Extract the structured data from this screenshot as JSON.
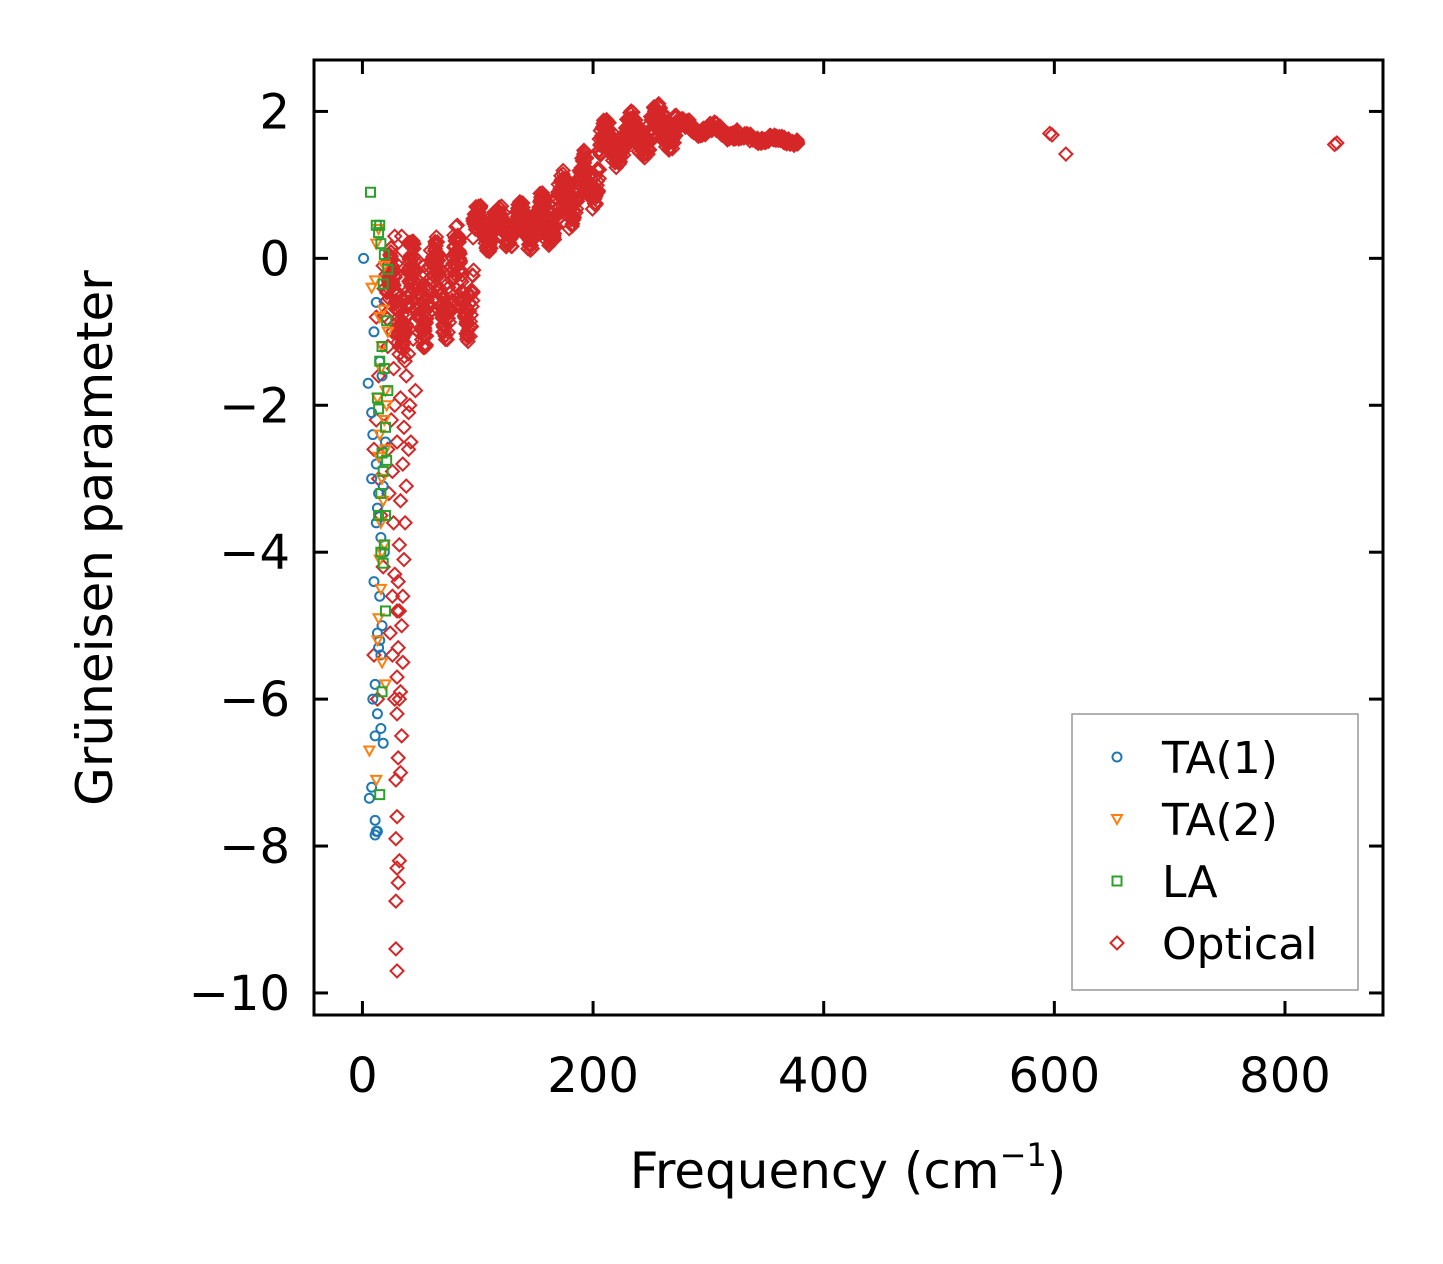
{
  "chart_data": {
    "type": "scatter",
    "title": "",
    "xlabel": "Frequency (cm",
    "xlabel_sup": "−1",
    "xlabel_suffix": ")",
    "ylabel": "Grüneisen parameter",
    "xlim": [
      -42,
      885
    ],
    "ylim": [
      -10.3,
      2.7
    ],
    "xticks": [
      0,
      200,
      400,
      600,
      800
    ],
    "xtick_labels": [
      "0",
      "200",
      "400",
      "600",
      "800"
    ],
    "yticks": [
      2,
      0,
      -2,
      -4,
      -6,
      -8,
      -10
    ],
    "ytick_labels": [
      "2",
      "0",
      "−2",
      "−4",
      "−6",
      "−8",
      "−10"
    ],
    "legend_position": "lower-right",
    "series": [
      {
        "name": "TA(1)",
        "marker": "circle",
        "color": "#1f77b4",
        "points": [
          [
            5,
            -1.7
          ],
          [
            8,
            -2.1
          ],
          [
            9,
            -2.4
          ],
          [
            10,
            -1.0
          ],
          [
            12,
            -2.8
          ],
          [
            13,
            -3.4
          ],
          [
            8,
            -3.0
          ],
          [
            14,
            -3.2
          ],
          [
            12,
            -3.6
          ],
          [
            10,
            -4.4
          ],
          [
            15,
            -4.6
          ],
          [
            13,
            -5.1
          ],
          [
            15,
            -5.2
          ],
          [
            17,
            -5.0
          ],
          [
            14,
            -5.3
          ],
          [
            11,
            -5.8
          ],
          [
            9,
            -6.0
          ],
          [
            13,
            -6.2
          ],
          [
            16,
            -6.4
          ],
          [
            11,
            -6.5
          ],
          [
            18,
            -6.6
          ],
          [
            8,
            -7.2
          ],
          [
            6,
            -7.35
          ],
          [
            11,
            -7.65
          ],
          [
            12,
            -7.8
          ],
          [
            11,
            -7.85
          ],
          [
            13,
            -7.8
          ],
          [
            15,
            -1.4
          ],
          [
            17,
            -1.6
          ],
          [
            18,
            -3.1
          ],
          [
            16,
            -3.8
          ],
          [
            12,
            -0.6
          ],
          [
            1,
            0.0
          ],
          [
            20,
            -2.5
          ],
          [
            19,
            -4.0
          ],
          [
            16,
            -5.4
          ]
        ]
      },
      {
        "name": "TA(2)",
        "marker": "triangle-down",
        "color": "#ff7f0e",
        "points": [
          [
            8,
            -0.4
          ],
          [
            11,
            -0.3
          ],
          [
            12,
            0.2
          ],
          [
            14,
            0.4
          ],
          [
            15,
            -0.8
          ],
          [
            18,
            -0.7
          ],
          [
            17,
            -1.2
          ],
          [
            16,
            -1.5
          ],
          [
            20,
            -1.8
          ],
          [
            13,
            -1.9
          ],
          [
            19,
            -2.2
          ],
          [
            15,
            -2.4
          ],
          [
            20,
            -2.6
          ],
          [
            17,
            -3.0
          ],
          [
            18,
            -3.3
          ],
          [
            16,
            -3.6
          ],
          [
            19,
            -3.9
          ],
          [
            15,
            -4.1
          ],
          [
            17,
            -4.0
          ],
          [
            14,
            -4.9
          ],
          [
            13,
            -5.2
          ],
          [
            17,
            -5.5
          ],
          [
            6,
            -6.7
          ],
          [
            12,
            -7.1
          ],
          [
            21,
            -2.0
          ],
          [
            19,
            -0.1
          ],
          [
            22,
            -1.0
          ],
          [
            14,
            -2.7
          ],
          [
            16,
            -4.5
          ],
          [
            20,
            -5.8
          ]
        ]
      },
      {
        "name": "LA",
        "marker": "square",
        "color": "#2ca02c",
        "points": [
          [
            7,
            0.9
          ],
          [
            12,
            0.45
          ],
          [
            15,
            0.45
          ],
          [
            14,
            0.35
          ],
          [
            16,
            0.2
          ],
          [
            19,
            0.05
          ],
          [
            22,
            -0.15
          ],
          [
            18,
            -0.35
          ],
          [
            21,
            -0.85
          ],
          [
            17,
            -1.2
          ],
          [
            15,
            -1.4
          ],
          [
            19,
            -1.5
          ],
          [
            22,
            -1.8
          ],
          [
            14,
            -2.05
          ],
          [
            20,
            -2.3
          ],
          [
            17,
            -2.65
          ],
          [
            21,
            -2.75
          ],
          [
            16,
            -3.2
          ],
          [
            20,
            -3.5
          ],
          [
            14,
            -3.5
          ],
          [
            19,
            -3.9
          ],
          [
            18,
            -4.15
          ],
          [
            16,
            -4.0
          ],
          [
            20,
            -4.8
          ],
          [
            17,
            -5.9
          ],
          [
            15,
            -7.3
          ],
          [
            13,
            -1.9
          ],
          [
            18,
            -2.9
          ]
        ]
      },
      {
        "name": "Optical",
        "marker": "diamond",
        "color": "#d62728",
        "curves": [
          {
            "x0": 20,
            "x1": 96,
            "y0": -0.6,
            "y1": -0.3,
            "amp": 0.55,
            "freq": 4,
            "n": 380,
            "spread": 0.28
          },
          {
            "x0": 96,
            "x1": 150,
            "y0": 0.4,
            "y1": 0.45,
            "amp": 0.22,
            "freq": 3,
            "n": 240,
            "spread": 0.13
          },
          {
            "x0": 150,
            "x1": 205,
            "y0": 0.4,
            "y1": 1.2,
            "amp": 0.3,
            "freq": 3,
            "n": 260,
            "spread": 0.18
          },
          {
            "x0": 205,
            "x1": 272,
            "y0": 1.5,
            "y1": 1.85,
            "amp": 0.2,
            "freq": 3,
            "n": 280,
            "spread": 0.17
          },
          {
            "x0": 272,
            "x1": 325,
            "y0": 1.8,
            "y1": 1.7,
            "amp": 0.06,
            "freq": 2,
            "n": 140,
            "spread": 0.06
          },
          {
            "x0": 325,
            "x1": 378,
            "y0": 1.65,
            "y1": 1.6,
            "amp": 0.03,
            "freq": 2,
            "n": 90,
            "spread": 0.04
          }
        ],
        "points": [
          [
            30,
            -0.2
          ],
          [
            35,
            0.1
          ],
          [
            28,
            0.3
          ],
          [
            34,
            0.3
          ],
          [
            30,
            -0.7
          ],
          [
            36,
            -1.0
          ],
          [
            32,
            -1.2
          ],
          [
            38,
            -1.6
          ],
          [
            33,
            -1.9
          ],
          [
            40,
            -2.1
          ],
          [
            36,
            -2.3
          ],
          [
            40,
            -2.6
          ],
          [
            35,
            -2.8
          ],
          [
            38,
            -3.1
          ],
          [
            33,
            -3.3
          ],
          [
            37,
            -3.6
          ],
          [
            32,
            -3.9
          ],
          [
            36,
            -4.1
          ],
          [
            31,
            -4.4
          ],
          [
            35,
            -4.6
          ],
          [
            30,
            -4.8
          ],
          [
            34,
            -5.0
          ],
          [
            31,
            -5.3
          ],
          [
            35,
            -5.5
          ],
          [
            30,
            -5.7
          ],
          [
            33,
            -5.9
          ],
          [
            30,
            -6.2
          ],
          [
            34,
            -6.5
          ],
          [
            31,
            -6.8
          ],
          [
            29,
            -7.1
          ],
          [
            33,
            -7.0
          ],
          [
            30,
            -7.6
          ],
          [
            29,
            -7.9
          ],
          [
            32,
            -8.2
          ],
          [
            30,
            -8.3
          ],
          [
            31,
            -8.5
          ],
          [
            29,
            -8.75
          ],
          [
            29,
            -9.4
          ],
          [
            30,
            -9.7
          ],
          [
            26,
            -1.0
          ],
          [
            27,
            -1.5
          ],
          [
            25,
            -2.2
          ],
          [
            26,
            -2.9
          ],
          [
            27,
            -3.6
          ],
          [
            28,
            -4.3
          ],
          [
            25,
            -0.3
          ],
          [
            42,
            -0.5
          ],
          [
            44,
            -1.1
          ],
          [
            46,
            -1.8
          ],
          [
            41,
            -2.0
          ],
          [
            22,
            -2.6
          ],
          [
            23,
            -3.2
          ],
          [
            24,
            -5.1
          ],
          [
            26,
            -5.4
          ],
          [
            28,
            -6.0
          ],
          [
            32,
            -6.0
          ],
          [
            22,
            -1.2
          ],
          [
            12,
            -0.8
          ],
          [
            14,
            -1.6
          ],
          [
            10,
            -2.6
          ],
          [
            12,
            -2.2
          ],
          [
            14,
            -3.0
          ],
          [
            16,
            -3.5
          ],
          [
            18,
            -4.2
          ],
          [
            10,
            -5.4
          ],
          [
            13,
            -6.0
          ],
          [
            18,
            -0.1
          ],
          [
            40,
            0.2
          ],
          [
            45,
            -0.2
          ],
          [
            48,
            -0.8
          ],
          [
            40,
            -1.3
          ],
          [
            42,
            -2.5
          ],
          [
            37,
            -1.4
          ],
          [
            38,
            -0.9
          ],
          [
            28,
            -2.0
          ],
          [
            30,
            -2.5
          ],
          [
            32,
            -4.8
          ],
          [
            26,
            -4.6
          ],
          [
            336,
            1.6
          ],
          [
            596,
            1.7
          ],
          [
            598,
            1.68
          ],
          [
            610,
            1.42
          ],
          [
            843,
            1.55
          ],
          [
            845,
            1.57
          ]
        ]
      }
    ]
  }
}
